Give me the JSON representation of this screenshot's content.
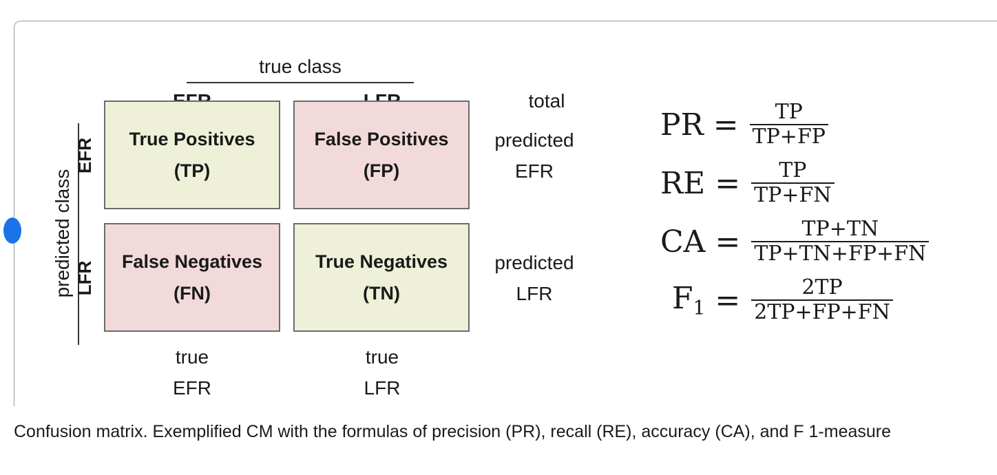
{
  "matrix": {
    "true_class_label": "true class",
    "predicted_class_label": "predicted class",
    "total_label": "total",
    "columns": [
      "EFR",
      "LFR"
    ],
    "rows": [
      "EFR",
      "LFR"
    ],
    "cells": {
      "tp": {
        "name": "True Positives",
        "abbr": "(TP)"
      },
      "fp": {
        "name": "False Positives",
        "abbr": "(FP)"
      },
      "fn": {
        "name": "False Negatives",
        "abbr": "(FN)"
      },
      "tn": {
        "name": "True Negatives",
        "abbr": "(TN)"
      }
    },
    "row_totals": [
      {
        "line1": "predicted",
        "line2": "EFR"
      },
      {
        "line1": "predicted",
        "line2": "LFR"
      }
    ],
    "column_totals": [
      {
        "line1": "true",
        "line2": "EFR"
      },
      {
        "line1": "true",
        "line2": "LFR"
      }
    ],
    "colors": {
      "correct": "#eef1d8",
      "incorrect": "#f2dadb",
      "border": "#6b6b6b"
    }
  },
  "formulas": [
    {
      "lhs": "PR",
      "numerator": "TP",
      "denominator": "TP+FP"
    },
    {
      "lhs": "RE",
      "numerator": "TP",
      "denominator": "TP+FN"
    },
    {
      "lhs": "CA",
      "numerator": "TP+TN",
      "denominator": "TP+TN+FP+FN"
    },
    {
      "lhs": "F",
      "lhs_sub": "1",
      "numerator": "2TP",
      "denominator": "2TP+FP+FN"
    }
  ],
  "equals_sign": "=",
  "caption": "Confusion matrix. Exemplified CM with the formulas of precision (PR), recall (RE), accuracy (CA), and F 1-measure"
}
